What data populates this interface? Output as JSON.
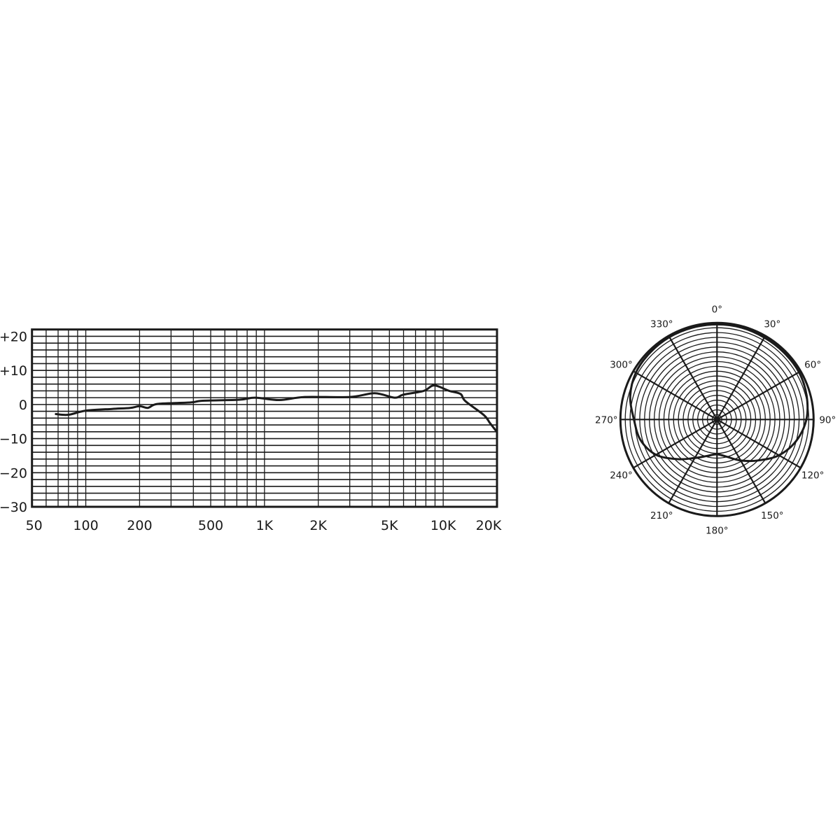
{
  "colors": {
    "ink": "#1a1a1a",
    "background": "#ffffff"
  },
  "chart_data": [
    {
      "type": "line",
      "x_scale": "log",
      "xlim": [
        50,
        20000
      ],
      "ylim": [
        -30,
        22
      ],
      "grid": true,
      "x_ticks": [
        {
          "value": 50,
          "label": "50"
        },
        {
          "value": 100,
          "label": "100"
        },
        {
          "value": 200,
          "label": "200"
        },
        {
          "value": 500,
          "label": "500"
        },
        {
          "value": 1000,
          "label": "1K"
        },
        {
          "value": 2000,
          "label": "2K"
        },
        {
          "value": 5000,
          "label": "5K"
        },
        {
          "value": 10000,
          "label": "10K"
        },
        {
          "value": 20000,
          "label": "20K"
        }
      ],
      "y_ticks": [
        {
          "value": 20,
          "label": "+20"
        },
        {
          "value": 10,
          "label": "+10"
        },
        {
          "value": 0,
          "label": "0"
        },
        {
          "value": -10,
          "label": "−10"
        },
        {
          "value": -20,
          "label": "−20"
        },
        {
          "value": -30,
          "label": "−30"
        }
      ],
      "x_grid_values": [
        60,
        70,
        80,
        90,
        100,
        200,
        300,
        400,
        500,
        600,
        700,
        800,
        900,
        1000,
        2000,
        3000,
        4000,
        5000,
        6000,
        7000,
        8000,
        9000,
        10000
      ],
      "y_grid_step": 2,
      "series": [
        {
          "x": [
            68,
            80,
            100,
            140,
            177,
            200,
            222,
            240,
            270,
            387,
            450,
            725,
            885,
            1210,
            1680,
            3000,
            4140,
            5340,
            6000,
            7780,
            8900,
            10800,
            12500,
            13300,
            16900,
            18300,
            20000
          ],
          "y": [
            -2.8,
            -3.0,
            -1.8,
            -1.3,
            -1.0,
            -0.5,
            -1.0,
            -0.1,
            0.3,
            0.6,
            1.1,
            1.4,
            2.0,
            1.3,
            2.2,
            2.2,
            3.3,
            2.0,
            2.9,
            4.0,
            5.6,
            4.0,
            3.1,
            1.0,
            -3.1,
            -5.5,
            -8.1
          ]
        }
      ]
    },
    {
      "type": "polar",
      "angle_labels": [
        {
          "angle": 0,
          "label": "0°"
        },
        {
          "angle": 30,
          "label": "30°"
        },
        {
          "angle": 60,
          "label": "60°"
        },
        {
          "angle": 90,
          "label": "90°"
        },
        {
          "angle": 120,
          "label": "120°"
        },
        {
          "angle": 150,
          "label": "150°"
        },
        {
          "angle": 180,
          "label": "180°"
        },
        {
          "angle": 210,
          "label": "210°"
        },
        {
          "angle": 240,
          "label": "240°"
        },
        {
          "angle": 270,
          "label": "270°"
        },
        {
          "angle": 300,
          "label": "300°"
        },
        {
          "angle": 330,
          "label": "330°"
        }
      ],
      "rings": 20,
      "spoke_step_deg": 30,
      "series": [
        {
          "angle": [
            0,
            15,
            30,
            45,
            60,
            75,
            90,
            105,
            120,
            135,
            150,
            165,
            180,
            195,
            210,
            225,
            240,
            255,
            270,
            285,
            300,
            315,
            330,
            345
          ],
          "r_relative": [
            0.985,
            0.985,
            0.98,
            0.98,
            0.98,
            0.96,
            0.925,
            0.85,
            0.74,
            0.6,
            0.49,
            0.4,
            0.36,
            0.39,
            0.46,
            0.58,
            0.73,
            0.82,
            0.86,
            0.93,
            0.97,
            0.98,
            0.985,
            0.985
          ]
        }
      ]
    }
  ]
}
